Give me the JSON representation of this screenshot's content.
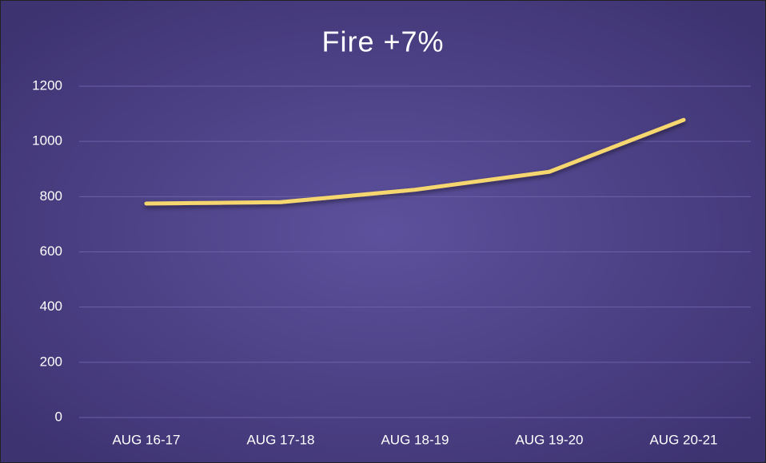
{
  "chart_data": {
    "type": "line",
    "title": "Fire +7%",
    "categories": [
      "AUG 16-17",
      "AUG 17-18",
      "AUG 18-19",
      "AUG 19-20",
      "AUG 20-21"
    ],
    "series": [
      {
        "name": "Fire",
        "color": "#f6d66e",
        "values": [
          775,
          780,
          825,
          890,
          1078
        ]
      }
    ],
    "ylim": [
      0,
      1200
    ],
    "yticks": [
      0,
      200,
      400,
      600,
      800,
      1000,
      1200
    ],
    "grid": true
  }
}
